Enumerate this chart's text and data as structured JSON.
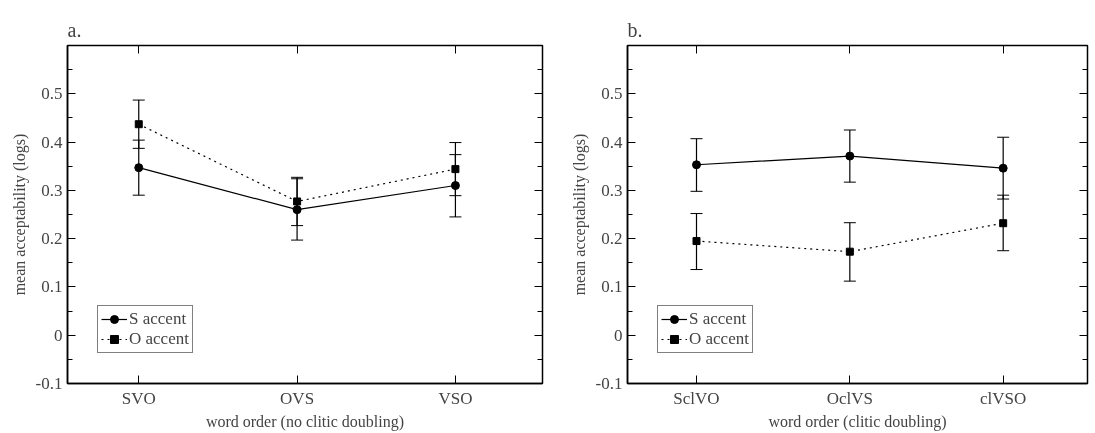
{
  "chart_data": [
    {
      "type": "line",
      "title": "a.",
      "xlabel": "word order (no clitic doubling)",
      "ylabel": "mean acceptability (logs)",
      "categories": [
        "SVO",
        "OVS",
        "VSO"
      ],
      "ylim": [
        -0.1,
        0.6
      ],
      "yticks": [
        -0.1,
        0,
        0.1,
        0.2,
        0.3,
        0.4,
        0.5
      ],
      "legend": "bottom left",
      "series": [
        {
          "name": "S accent",
          "color": "#000000",
          "marker": "circle",
          "line_style": "solid",
          "values": [
            0.347,
            0.26,
            0.31
          ],
          "errors": [
            [
              0.29,
              0.404
            ],
            [
              0.197,
              0.324
            ],
            [
              0.245,
              0.374
            ]
          ]
        },
        {
          "name": "O accent",
          "color": "#000000",
          "marker": "square",
          "line_style": "dotted",
          "values": [
            0.437,
            0.277,
            0.344
          ],
          "errors": [
            [
              0.387,
              0.487
            ],
            [
              0.227,
              0.327
            ],
            [
              0.289,
              0.399
            ]
          ]
        }
      ]
    },
    {
      "type": "line",
      "title": "b.",
      "xlabel": "word order (clitic doubling)",
      "ylabel": "mean acceptability (logs)",
      "categories": [
        "SclVO",
        "OclVS",
        "clVSO"
      ],
      "ylim": [
        -0.1,
        0.6
      ],
      "yticks": [
        -0.1,
        0,
        0.1,
        0.2,
        0.3,
        0.4,
        0.5
      ],
      "legend": "bottom left",
      "series": [
        {
          "name": "S accent",
          "color": "#000000",
          "marker": "circle",
          "line_style": "solid",
          "values": [
            0.353,
            0.371,
            0.346
          ],
          "errors": [
            [
              0.298,
              0.407
            ],
            [
              0.317,
              0.425
            ],
            [
              0.282,
              0.41
            ]
          ]
        },
        {
          "name": "O accent",
          "color": "#000000",
          "marker": "square",
          "line_style": "dotted",
          "values": [
            0.195,
            0.173,
            0.232
          ],
          "errors": [
            [
              0.136,
              0.252
            ],
            [
              0.112,
              0.233
            ],
            [
              0.175,
              0.29
            ]
          ]
        }
      ]
    }
  ]
}
